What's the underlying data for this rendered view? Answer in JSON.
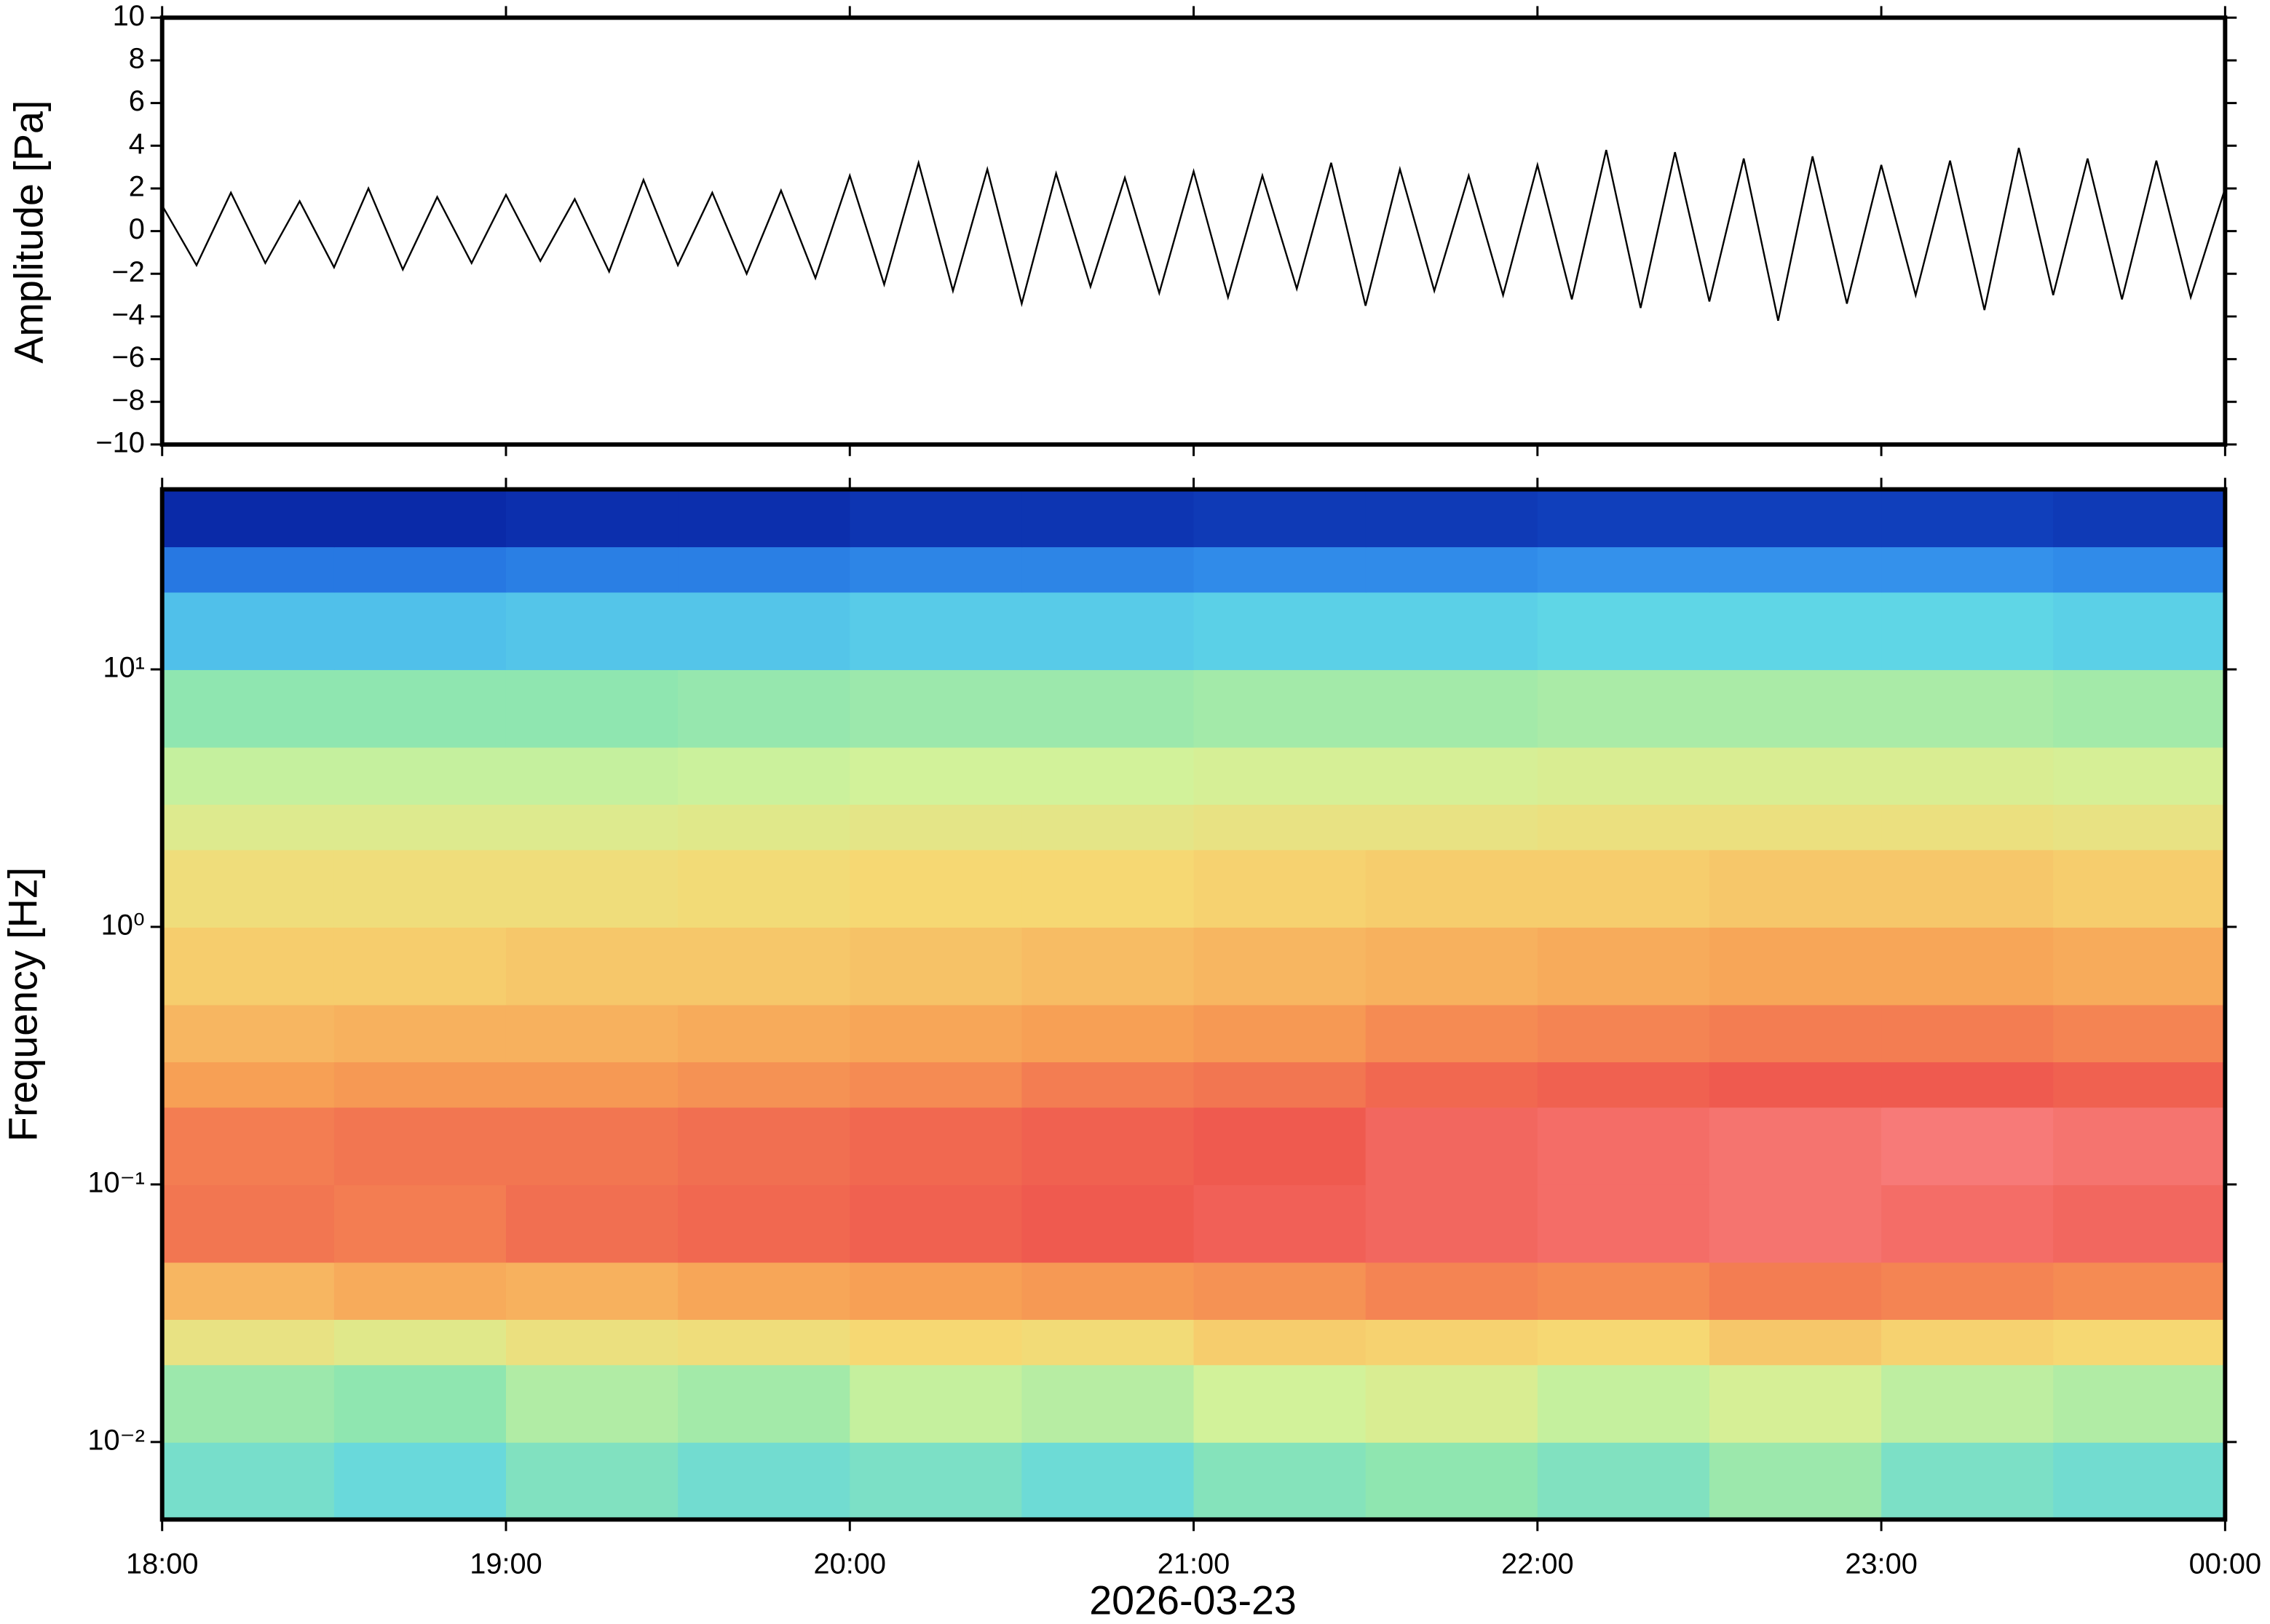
{
  "chart_data": [
    {
      "type": "line",
      "ylabel": "Amplitude [Pa]",
      "x": [
        18.0,
        18.1,
        18.2,
        18.3,
        18.4,
        18.5,
        18.6,
        18.7,
        18.8,
        18.9,
        19.0,
        19.1,
        19.2,
        19.3,
        19.4,
        19.5,
        19.6,
        19.7,
        19.8,
        19.9,
        20.0,
        20.1,
        20.2,
        20.3,
        20.4,
        20.5,
        20.6,
        20.7,
        20.8,
        20.9,
        21.0,
        21.1,
        21.2,
        21.3,
        21.4,
        21.5,
        21.6,
        21.7,
        21.8,
        21.9,
        22.0,
        22.1,
        22.2,
        22.3,
        22.4,
        22.5,
        22.6,
        22.7,
        22.8,
        22.9,
        23.0,
        23.1,
        23.2,
        23.3,
        23.4,
        23.5,
        23.6,
        23.7,
        23.8,
        23.9,
        24.0
      ],
      "values": [
        1.2,
        -1.6,
        1.8,
        -1.5,
        1.4,
        -1.7,
        2.0,
        -1.8,
        1.6,
        -1.5,
        1.7,
        -1.4,
        1.5,
        -1.9,
        2.4,
        -1.6,
        1.8,
        -2.0,
        1.9,
        -2.2,
        2.6,
        -2.5,
        3.2,
        -2.8,
        2.9,
        -3.4,
        2.7,
        -2.6,
        2.5,
        -2.9,
        2.8,
        -3.1,
        2.6,
        -2.7,
        3.2,
        -3.5,
        2.9,
        -2.8,
        2.6,
        -3.0,
        3.1,
        -3.2,
        3.8,
        -3.6,
        3.7,
        -3.3,
        3.4,
        -4.2,
        3.5,
        -3.4,
        3.1,
        -3.0,
        3.3,
        -3.7,
        3.9,
        -3.0,
        3.4,
        -3.2,
        3.3,
        -3.1,
        2.0
      ],
      "color": "#000000",
      "xlim": [
        18,
        24
      ],
      "xticks": [
        18,
        19,
        20,
        21,
        22,
        23,
        24
      ],
      "ylim": [
        -10,
        10
      ],
      "yticks": [
        {
          "value": -10,
          "label": "−10"
        },
        {
          "value": -8,
          "label": "−8"
        },
        {
          "value": -6,
          "label": "−6"
        },
        {
          "value": -4,
          "label": "−4"
        },
        {
          "value": -2,
          "label": "−2"
        },
        0,
        2,
        4,
        6,
        8,
        10
      ]
    },
    {
      "type": "heatmap",
      "ylabel": "Frequency [Hz]",
      "xlabel": "2026-03-23",
      "yscale": "log",
      "xbins": [
        18,
        18.5,
        19,
        19.5,
        20,
        20.5,
        21,
        21.5,
        22,
        22.5,
        23,
        23.5,
        24
      ],
      "ybins": [
        0.005,
        0.01,
        0.02,
        0.03,
        0.05,
        0.1,
        0.2,
        0.3,
        0.5,
        1,
        2,
        3,
        5,
        10,
        20,
        30,
        50
      ],
      "z": [
        [
          0.45,
          0.42,
          0.47,
          0.44,
          0.46,
          0.43,
          0.48,
          0.5,
          0.47,
          0.52,
          0.46,
          0.44
        ],
        [
          0.52,
          0.5,
          0.55,
          0.53,
          0.58,
          0.56,
          0.6,
          0.62,
          0.58,
          0.61,
          0.57,
          0.55
        ],
        [
          0.66,
          0.64,
          0.67,
          0.68,
          0.7,
          0.69,
          0.72,
          0.71,
          0.7,
          0.73,
          0.71,
          0.7
        ],
        [
          0.76,
          0.78,
          0.77,
          0.79,
          0.8,
          0.81,
          0.82,
          0.84,
          0.83,
          0.85,
          0.84,
          0.83
        ],
        [
          0.86,
          0.85,
          0.87,
          0.88,
          0.89,
          0.9,
          0.91,
          0.92,
          0.93,
          0.94,
          0.93,
          0.92
        ],
        [
          0.85,
          0.86,
          0.86,
          0.87,
          0.88,
          0.89,
          0.9,
          0.92,
          0.93,
          0.94,
          0.95,
          0.94
        ],
        [
          0.8,
          0.81,
          0.81,
          0.82,
          0.83,
          0.85,
          0.86,
          0.88,
          0.89,
          0.9,
          0.9,
          0.89
        ],
        [
          0.76,
          0.77,
          0.77,
          0.78,
          0.79,
          0.8,
          0.81,
          0.83,
          0.84,
          0.85,
          0.85,
          0.84
        ],
        [
          0.72,
          0.72,
          0.73,
          0.73,
          0.74,
          0.75,
          0.76,
          0.77,
          0.78,
          0.79,
          0.79,
          0.78
        ],
        [
          0.68,
          0.68,
          0.68,
          0.69,
          0.7,
          0.7,
          0.71,
          0.72,
          0.72,
          0.73,
          0.73,
          0.72
        ],
        [
          0.63,
          0.63,
          0.63,
          0.64,
          0.65,
          0.65,
          0.66,
          0.66,
          0.67,
          0.67,
          0.67,
          0.66
        ],
        [
          0.58,
          0.58,
          0.58,
          0.59,
          0.6,
          0.6,
          0.61,
          0.61,
          0.62,
          0.62,
          0.62,
          0.61
        ],
        [
          0.5,
          0.5,
          0.5,
          0.51,
          0.52,
          0.52,
          0.53,
          0.53,
          0.54,
          0.54,
          0.54,
          0.53
        ],
        [
          0.36,
          0.36,
          0.37,
          0.37,
          0.38,
          0.38,
          0.39,
          0.39,
          0.4,
          0.4,
          0.4,
          0.39
        ],
        [
          0.24,
          0.24,
          0.25,
          0.25,
          0.26,
          0.26,
          0.27,
          0.27,
          0.28,
          0.28,
          0.28,
          0.27
        ],
        [
          0.1,
          0.1,
          0.11,
          0.11,
          0.12,
          0.12,
          0.13,
          0.13,
          0.14,
          0.14,
          0.14,
          0.13
        ]
      ],
      "colormap": [
        "#00007f",
        "#0a2aa8",
        "#1a5fd8",
        "#3a9ef0",
        "#5fd6e6",
        "#8fe6b0",
        "#d2f29a",
        "#f6d873",
        "#f7a055",
        "#ef5a4f",
        "#ff9aa0"
      ],
      "xlim": [
        18,
        24
      ],
      "xticks": [
        {
          "value": 18,
          "label": "18:00"
        },
        {
          "value": 19,
          "label": "19:00"
        },
        {
          "value": 20,
          "label": "20:00"
        },
        {
          "value": 21,
          "label": "21:00"
        },
        {
          "value": 22,
          "label": "22:00"
        },
        {
          "value": 23,
          "label": "23:00"
        },
        {
          "value": 24,
          "label": "00:00"
        }
      ],
      "ylim": [
        0.005,
        50
      ],
      "yticks": [
        {
          "value": 0.01,
          "label": "10⁻²"
        },
        {
          "value": 0.1,
          "label": "10⁻¹"
        },
        {
          "value": 1,
          "label": "10⁰"
        },
        {
          "value": 10,
          "label": "10¹"
        }
      ]
    }
  ]
}
